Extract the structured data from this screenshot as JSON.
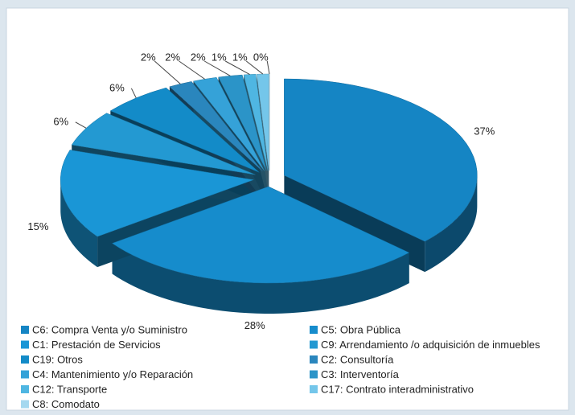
{
  "chart_data": {
    "type": "pie3d",
    "categories": [
      "C6: Compra Venta y/o Suministro",
      "C5: Obra Pública",
      "C1: Prestación de Servicios",
      "C9: Arrendamiento /o adquisición de inmuebles",
      "C19: Otros",
      "C2: Consultoría",
      "C4: Mantenimiento y/o Reparación",
      "C3: Interventoría",
      "C12: Transporte",
      "C17: Contrato interadministrativo",
      "C8: Comodato"
    ],
    "values": [
      37,
      28,
      15,
      6,
      6,
      2,
      2,
      2,
      1,
      1,
      0
    ],
    "value_labels": [
      "37%",
      "28%",
      "15%",
      "6%",
      "6%",
      "2%",
      "2%",
      "2%",
      "1%",
      "1%",
      "0%"
    ],
    "colors": [
      "#1585c4",
      "#168ccc",
      "#1a96d6",
      "#2399d2",
      "#138bc8",
      "#2a86bd",
      "#35a2d8",
      "#2b94c8",
      "#4fb6e2",
      "#74c6ea",
      "#a4d8ef"
    ],
    "legend": "bottom"
  }
}
